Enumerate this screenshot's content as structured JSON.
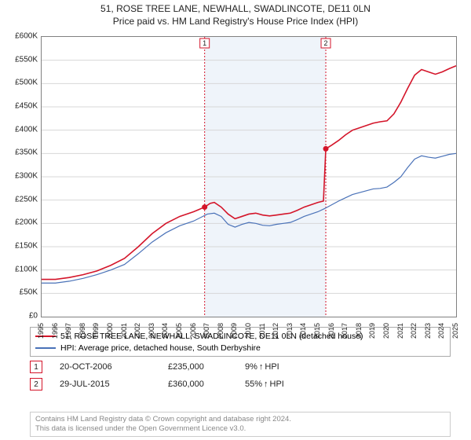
{
  "title": "51, ROSE TREE LANE, NEWHALL, SWADLINCOTE, DE11 0LN",
  "subtitle": "Price paid vs. HM Land Registry's House Price Index (HPI)",
  "chart": {
    "type": "line",
    "xlim": [
      1995,
      2025
    ],
    "ylim": [
      0,
      600000
    ],
    "ytick_step": 50000,
    "ytick_prefix": "£",
    "ytick_suffixK": true,
    "xticks": [
      1995,
      1996,
      1997,
      1998,
      1999,
      2000,
      2001,
      2002,
      2003,
      2004,
      2005,
      2006,
      2007,
      2008,
      2009,
      2010,
      2011,
      2012,
      2013,
      2014,
      2015,
      2016,
      2017,
      2018,
      2019,
      2020,
      2021,
      2022,
      2023,
      2024,
      2025
    ],
    "grid_color": "#d7d7d7",
    "border_color": "#808080",
    "shade_color": "#e8f0f8",
    "background": "#ffffff",
    "series": [
      {
        "name": "property",
        "color": "#d4152a",
        "width": 1.6,
        "data": [
          [
            1995,
            80000
          ],
          [
            1996,
            80000
          ],
          [
            1997,
            84000
          ],
          [
            1998,
            90000
          ],
          [
            1999,
            98000
          ],
          [
            2000,
            110000
          ],
          [
            2001,
            125000
          ],
          [
            2002,
            150000
          ],
          [
            2003,
            178000
          ],
          [
            2004,
            200000
          ],
          [
            2005,
            215000
          ],
          [
            2006,
            225000
          ],
          [
            2006.8,
            235000
          ],
          [
            2007.2,
            243000
          ],
          [
            2007.5,
            245000
          ],
          [
            2008,
            235000
          ],
          [
            2008.5,
            220000
          ],
          [
            2009,
            210000
          ],
          [
            2009.5,
            215000
          ],
          [
            2010,
            220000
          ],
          [
            2010.5,
            222000
          ],
          [
            2011,
            218000
          ],
          [
            2011.5,
            216000
          ],
          [
            2012,
            218000
          ],
          [
            2012.5,
            220000
          ],
          [
            2013,
            222000
          ],
          [
            2013.5,
            228000
          ],
          [
            2014,
            235000
          ],
          [
            2014.5,
            240000
          ],
          [
            2015,
            245000
          ],
          [
            2015.4,
            248000
          ],
          [
            2015.57,
            360000
          ],
          [
            2016,
            368000
          ],
          [
            2016.5,
            378000
          ],
          [
            2017,
            390000
          ],
          [
            2017.5,
            400000
          ],
          [
            2018,
            405000
          ],
          [
            2018.5,
            410000
          ],
          [
            2019,
            415000
          ],
          [
            2019.5,
            418000
          ],
          [
            2020,
            420000
          ],
          [
            2020.5,
            435000
          ],
          [
            2021,
            460000
          ],
          [
            2021.5,
            490000
          ],
          [
            2022,
            518000
          ],
          [
            2022.5,
            530000
          ],
          [
            2023,
            525000
          ],
          [
            2023.5,
            520000
          ],
          [
            2024,
            525000
          ],
          [
            2024.5,
            532000
          ],
          [
            2025,
            538000
          ]
        ]
      },
      {
        "name": "hpi",
        "color": "#4a72b8",
        "width": 1.2,
        "data": [
          [
            1995,
            72000
          ],
          [
            1996,
            72000
          ],
          [
            1997,
            76000
          ],
          [
            1998,
            82000
          ],
          [
            1999,
            90000
          ],
          [
            2000,
            100000
          ],
          [
            2001,
            112000
          ],
          [
            2002,
            135000
          ],
          [
            2003,
            160000
          ],
          [
            2004,
            180000
          ],
          [
            2005,
            195000
          ],
          [
            2006,
            205000
          ],
          [
            2007,
            220000
          ],
          [
            2007.5,
            222000
          ],
          [
            2008,
            215000
          ],
          [
            2008.5,
            198000
          ],
          [
            2009,
            192000
          ],
          [
            2009.5,
            198000
          ],
          [
            2010,
            202000
          ],
          [
            2010.5,
            200000
          ],
          [
            2011,
            196000
          ],
          [
            2011.5,
            195000
          ],
          [
            2012,
            198000
          ],
          [
            2012.5,
            200000
          ],
          [
            2013,
            202000
          ],
          [
            2013.5,
            208000
          ],
          [
            2014,
            215000
          ],
          [
            2014.5,
            220000
          ],
          [
            2015,
            225000
          ],
          [
            2015.5,
            232000
          ],
          [
            2016,
            240000
          ],
          [
            2016.5,
            248000
          ],
          [
            2017,
            255000
          ],
          [
            2017.5,
            262000
          ],
          [
            2018,
            266000
          ],
          [
            2018.5,
            270000
          ],
          [
            2019,
            274000
          ],
          [
            2019.5,
            275000
          ],
          [
            2020,
            278000
          ],
          [
            2020.5,
            288000
          ],
          [
            2021,
            300000
          ],
          [
            2021.5,
            320000
          ],
          [
            2022,
            338000
          ],
          [
            2022.5,
            345000
          ],
          [
            2023,
            342000
          ],
          [
            2023.5,
            340000
          ],
          [
            2024,
            344000
          ],
          [
            2024.5,
            348000
          ],
          [
            2025,
            350000
          ]
        ]
      }
    ],
    "sale_markers": [
      {
        "n": 1,
        "x": 2006.8,
        "y": 235000,
        "color": "#d4152a"
      },
      {
        "n": 2,
        "x": 2015.57,
        "y": 360000,
        "color": "#d4152a"
      }
    ]
  },
  "legend": [
    {
      "color": "#d4152a",
      "label": "51, ROSE TREE LANE, NEWHALL, SWADLINCOTE, DE11 0LN (detached house)"
    },
    {
      "color": "#4a72b8",
      "label": "HPI: Average price, detached house, South Derbyshire"
    }
  ],
  "sales": [
    {
      "n": "1",
      "color": "#d4152a",
      "date": "20-OCT-2006",
      "price": "£235,000",
      "hpi_pct": "9%",
      "hpi_arrow": "↑",
      "hpi_label": "HPI"
    },
    {
      "n": "2",
      "color": "#d4152a",
      "date": "29-JUL-2015",
      "price": "£360,000",
      "hpi_pct": "55%",
      "hpi_arrow": "↑",
      "hpi_label": "HPI"
    }
  ],
  "attribution": {
    "line1": "Contains HM Land Registry data © Crown copyright and database right 2024.",
    "line2": "This data is licensed under the Open Government Licence v3.0."
  }
}
